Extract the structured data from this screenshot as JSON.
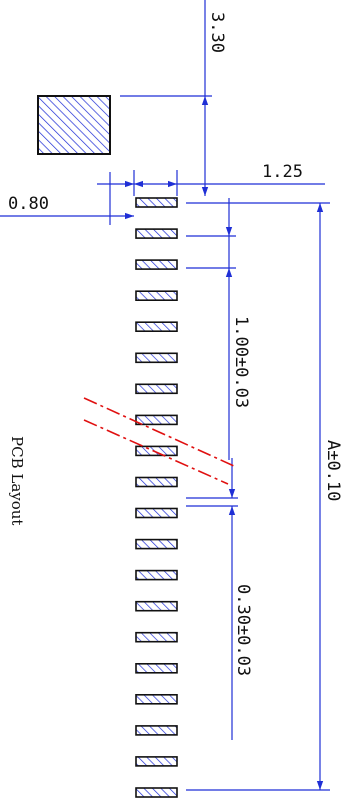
{
  "drawing": {
    "caption": "PCB Layout",
    "colors": {
      "dimension_line": "#1f2fd6",
      "outline": "#111111",
      "hatch": "#1f2fd6",
      "break_line": "#e01010",
      "background": "#ffffff"
    },
    "pad_count": 20,
    "dimensions": {
      "mount_pad_offset": "3.30",
      "pad_length": "1.25",
      "mount_pad_gap": "0.80",
      "pitch": "1.00±0.03",
      "pad_width": "0.30±0.03",
      "overall_span": "A±0.10"
    }
  }
}
